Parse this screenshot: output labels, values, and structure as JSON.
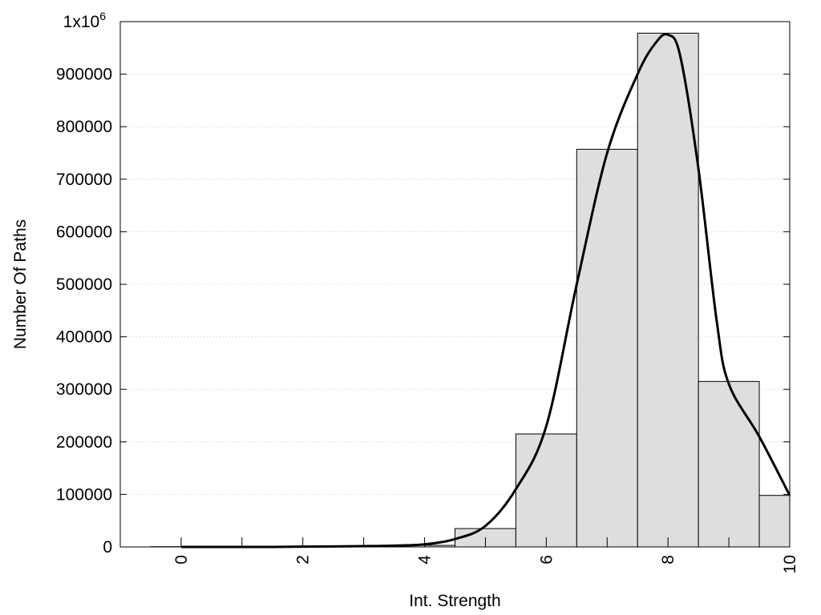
{
  "chart_data": {
    "type": "bar",
    "title": "",
    "xlabel": "Int. Strength",
    "ylabel": "Number Of Paths",
    "xlim": [
      -1,
      10
    ],
    "ylim": [
      0,
      1000000
    ],
    "grid": true,
    "x_ticks": [
      0,
      2,
      4,
      6,
      8,
      10
    ],
    "x_tick_labels": [
      "0",
      "2",
      "4",
      "6",
      "8",
      "10"
    ],
    "y_ticks": [
      0,
      100000,
      200000,
      300000,
      400000,
      500000,
      600000,
      700000,
      800000,
      900000,
      1000000
    ],
    "y_tick_labels": [
      "0",
      "100000",
      "200000",
      "300000",
      "400000",
      "500000",
      "600000",
      "700000",
      "800000",
      "900000",
      "1x10^6"
    ],
    "categories": [
      0,
      1,
      2,
      3,
      4,
      5,
      6,
      7,
      8,
      9,
      10
    ],
    "values": [
      500,
      500,
      600,
      1200,
      3000,
      35000,
      215000,
      757000,
      978000,
      315000,
      98000
    ],
    "bar_width": 1,
    "bar_color": "#dedede",
    "curve": {
      "color": "#000000",
      "x": [
        0,
        0.5,
        1,
        1.5,
        2,
        2.5,
        3,
        3.5,
        4,
        4.5,
        5,
        5.5,
        6,
        6.5,
        7,
        7.5,
        7.8,
        8,
        8.2,
        8.5,
        8.8,
        9,
        9.5,
        10
      ],
      "y": [
        0,
        0,
        0,
        0,
        500,
        1000,
        1500,
        2500,
        5000,
        15000,
        40000,
        110000,
        230000,
        500000,
        750000,
        900000,
        960000,
        975000,
        935000,
        720000,
        430000,
        310000,
        210000,
        98000
      ]
    }
  }
}
